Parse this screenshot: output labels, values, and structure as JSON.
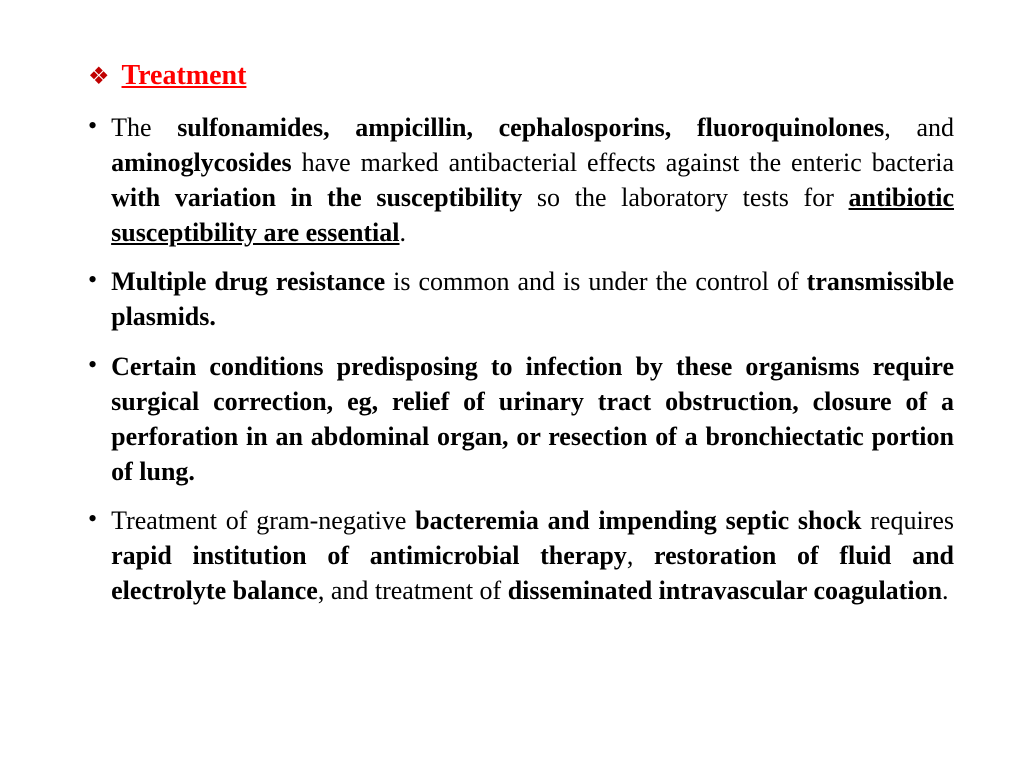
{
  "heading": "Treatment",
  "bullets": {
    "b0": {
      "t0": "The ",
      "t1": "sulfonamides, ampicillin, cephalosporins, fluoroquinolones",
      "t2": ", and ",
      "t3": "aminoglycosides",
      "t4": " have marked antibacterial effects against the enteric bacteria ",
      "t5": "with variation in the susceptibility",
      "t6": " so the laboratory tests for ",
      "t7": "antibiotic susceptibility are essential",
      "t8": "."
    },
    "b1": {
      "t0": "Multiple drug resistance",
      "t1": " is common and is under the control of ",
      "t2": "transmissible plasmids."
    },
    "b2": {
      "t0": "Certain conditions predisposing to infection by these organisms require surgical correction, eg, relief of urinary tract obstruction, closure of a perforation in an abdominal organ, or resection of a bronchiectatic portion of lung."
    },
    "b3": {
      "t0": "Treatment of gram-negative ",
      "t1": "bacteremia and impending septic shock",
      "t2": " requires ",
      "t3": "rapid institution of antimicrobial therapy",
      "t4": ", ",
      "t5": "restoration of fluid and electrolyte balance",
      "t6": ", and treatment of ",
      "t7": "disseminated intravascular coagulation",
      "t8": "."
    }
  }
}
